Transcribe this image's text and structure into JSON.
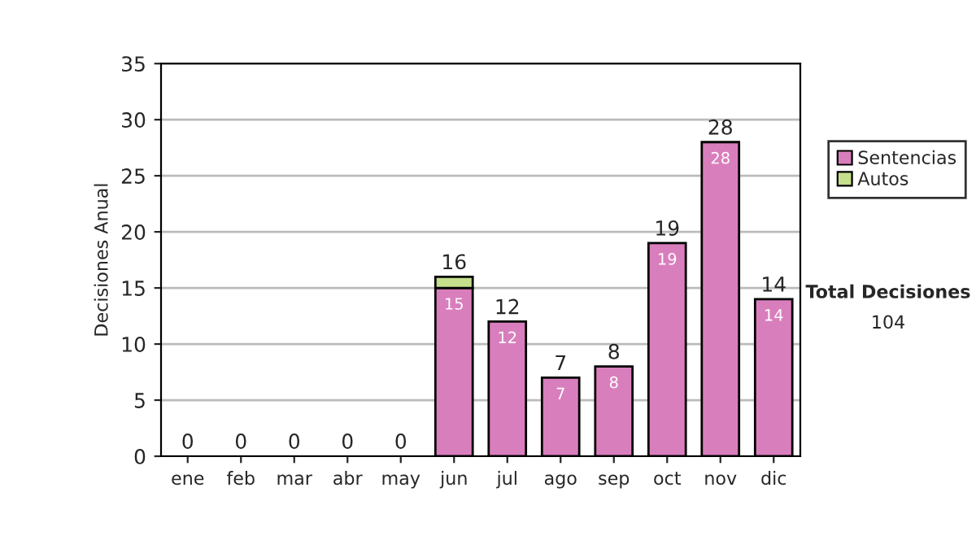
{
  "chart_data": {
    "type": "bar",
    "stacked": true,
    "ylabel": "Decisiones Anual",
    "categories": [
      "ene",
      "feb",
      "mar",
      "abr",
      "may",
      "jun",
      "jul",
      "ago",
      "sep",
      "oct",
      "nov",
      "dic"
    ],
    "series": [
      {
        "name": "Sentencias",
        "color": "#d97ebd",
        "values": [
          0,
          0,
          0,
          0,
          0,
          15,
          12,
          7,
          8,
          19,
          28,
          14
        ],
        "value_labels": [
          null,
          null,
          null,
          null,
          null,
          "15",
          "12",
          "7",
          "8",
          "19",
          "28",
          "14"
        ]
      },
      {
        "name": "Autos",
        "color": "#c5df8c",
        "values": [
          0,
          0,
          0,
          0,
          0,
          1,
          0,
          0,
          0,
          0,
          0,
          0
        ]
      }
    ],
    "totals": [
      "0",
      "0",
      "0",
      "0",
      "0",
      "16",
      "12",
      "7",
      "8",
      "19",
      "28",
      "14"
    ],
    "ylim": [
      0,
      35
    ],
    "yticks": [
      0,
      5,
      10,
      15,
      20,
      25,
      30,
      35
    ],
    "grid": "y",
    "legend": "right",
    "annotations": [
      "Total Decisiones",
      "104"
    ]
  }
}
